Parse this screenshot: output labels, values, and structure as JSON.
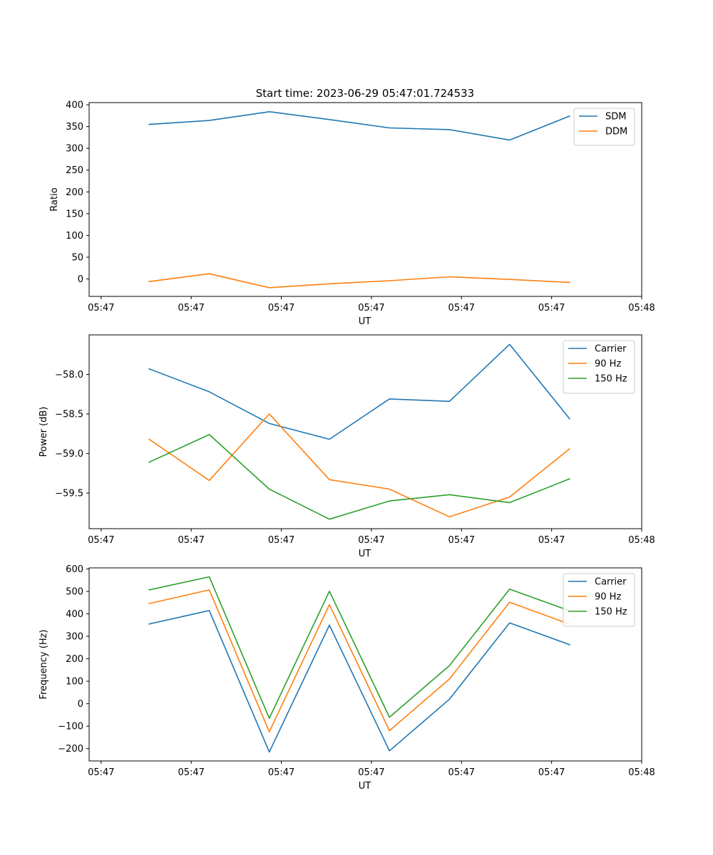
{
  "figure": {
    "title": "Start time: 2023-06-29 05:47:01.724533"
  },
  "chart_data": [
    {
      "type": "line",
      "xlabel": "UT",
      "ylabel": "Ratio",
      "x_tick_labels": [
        "05:47",
        "05:47",
        "05:47",
        "05:47",
        "05:47",
        "05:47",
        "05:48"
      ],
      "y_ticks": [
        0,
        50,
        100,
        150,
        200,
        250,
        300,
        350,
        400
      ],
      "ylim": [
        -40,
        405
      ],
      "x": [
        1,
        2,
        3,
        4,
        5,
        6,
        7,
        8
      ],
      "xlim": [
        0,
        9.2
      ],
      "legend_position": "top-right",
      "series": [
        {
          "name": "SDM",
          "color": "#1f77b4",
          "values": [
            355,
            364,
            384,
            366,
            347,
            343,
            319,
            374
          ]
        },
        {
          "name": "DDM",
          "color": "#ff7f0e",
          "values": [
            -6,
            12,
            -20,
            -11,
            -4,
            5,
            -1,
            -8
          ]
        }
      ]
    },
    {
      "type": "line",
      "xlabel": "UT",
      "ylabel": "Power (dB)",
      "x_tick_labels": [
        "05:47",
        "05:47",
        "05:47",
        "05:47",
        "05:47",
        "05:47",
        "05:48"
      ],
      "y_ticks": [
        -58.0,
        -58.5,
        -59.0,
        -59.5
      ],
      "y_tick_labels": [
        "−58.0",
        "−58.5",
        "−59.0",
        "−59.5"
      ],
      "ylim": [
        -59.95,
        -57.5
      ],
      "x": [
        1,
        2,
        3,
        4,
        5,
        6,
        7,
        8
      ],
      "xlim": [
        0,
        9.2
      ],
      "legend_position": "top-right",
      "series": [
        {
          "name": "Carrier",
          "color": "#1f77b4",
          "values": [
            -57.93,
            -58.22,
            -58.62,
            -58.82,
            -58.31,
            -58.34,
            -57.62,
            -58.56
          ]
        },
        {
          "name": "90 Hz",
          "color": "#ff7f0e",
          "values": [
            -58.82,
            -59.34,
            -58.5,
            -59.33,
            -59.45,
            -59.8,
            -59.55,
            -58.94
          ]
        },
        {
          "name": "150 Hz",
          "color": "#2ca02c",
          "values": [
            -59.11,
            -58.76,
            -59.45,
            -59.83,
            -59.6,
            -59.52,
            -59.62,
            -59.32
          ]
        }
      ]
    },
    {
      "type": "line",
      "xlabel": "UT",
      "ylabel": "Frequency (Hz)",
      "x_tick_labels": [
        "05:47",
        "05:47",
        "05:47",
        "05:47",
        "05:47",
        "05:47",
        "05:48"
      ],
      "y_ticks": [
        -200,
        -100,
        0,
        100,
        200,
        300,
        400,
        500,
        600
      ],
      "y_tick_labels": [
        "−200",
        "−100",
        "0",
        "100",
        "200",
        "300",
        "400",
        "500",
        "600"
      ],
      "ylim": [
        -255,
        605
      ],
      "x": [
        1,
        2,
        3,
        4,
        5,
        6,
        7,
        8
      ],
      "xlim": [
        0,
        9.2
      ],
      "legend_position": "top-right",
      "series": [
        {
          "name": "Carrier",
          "color": "#1f77b4",
          "values": [
            355,
            415,
            -215,
            350,
            -210,
            20,
            360,
            263
          ]
        },
        {
          "name": "90 Hz",
          "color": "#ff7f0e",
          "values": [
            446,
            507,
            -125,
            441,
            -120,
            110,
            452,
            354
          ]
        },
        {
          "name": "150 Hz",
          "color": "#2ca02c",
          "values": [
            507,
            565,
            -65,
            501,
            -60,
            170,
            510,
            414
          ]
        }
      ]
    }
  ]
}
